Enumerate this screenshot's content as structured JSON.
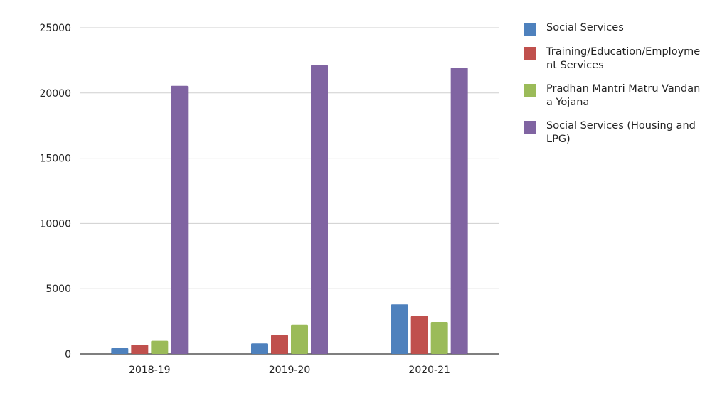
{
  "chart_data": {
    "type": "bar",
    "categories": [
      "2018-19",
      "2019-20",
      "2020-21"
    ],
    "series": [
      {
        "name": "Social Services",
        "color": "#4e81bd",
        "values": [
          450,
          800,
          3800
        ]
      },
      {
        "name": "Training/Education/Employment Services",
        "color": "#c0504d",
        "values": [
          700,
          1450,
          2900
        ]
      },
      {
        "name": "Pradhan Mantri Matru Vandana Yojana",
        "color": "#9bbb59",
        "values": [
          1000,
          2250,
          2450
        ]
      },
      {
        "name": "Social Services (Housing and LPG)",
        "color": "#8064a2",
        "values": [
          20550,
          22150,
          21950
        ]
      }
    ],
    "yticks": [
      "0",
      "5000",
      "10000",
      "15000",
      "20000",
      "25000"
    ],
    "ylim": [
      0,
      25000
    ],
    "grid": true,
    "legend_position": "right",
    "title": "",
    "xlabel": "",
    "ylabel": ""
  }
}
